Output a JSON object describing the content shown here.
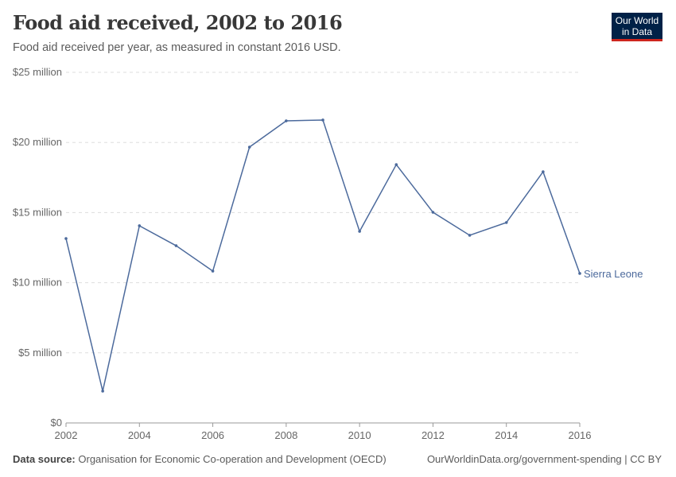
{
  "header": {
    "title": "Food aid received, 2002 to 2016",
    "subtitle": "Food aid received per year, as measured in constant 2016 USD.",
    "logo": "Our World in Data"
  },
  "footer": {
    "source_label": "Data source:",
    "source": "Organisation for Economic Co-operation and Development (OECD)",
    "url": "OurWorldinData.org/government-spending | CC BY"
  },
  "chart_data": {
    "type": "line",
    "title": "Food aid received, 2002 to 2016",
    "xlabel": "",
    "ylabel": "",
    "xlim": [
      2002,
      2016
    ],
    "ylim": [
      0,
      25
    ],
    "grid": "horizontal dashed",
    "x_ticks": [
      "2002",
      "2004",
      "2006",
      "2008",
      "2010",
      "2012",
      "2014",
      "2016"
    ],
    "y_ticks": [
      {
        "v": 0,
        "label": "$0"
      },
      {
        "v": 5,
        "label": "$5 million"
      },
      {
        "v": 10,
        "label": "$10 million"
      },
      {
        "v": 15,
        "label": "$15 million"
      },
      {
        "v": 20,
        "label": "$20 million"
      },
      {
        "v": 25,
        "label": "$25 million"
      }
    ],
    "series": [
      {
        "name": "Sierra Leone",
        "color": "#4c6a9c",
        "x": [
          2002,
          2003,
          2004,
          2005,
          2006,
          2007,
          2008,
          2009,
          2010,
          2011,
          2012,
          2013,
          2014,
          2015,
          2016
        ],
        "values": [
          13.15,
          2.27,
          14.06,
          12.64,
          10.83,
          19.67,
          21.54,
          21.6,
          13.66,
          18.42,
          15.02,
          13.38,
          14.29,
          17.91,
          10.66
        ]
      }
    ]
  }
}
